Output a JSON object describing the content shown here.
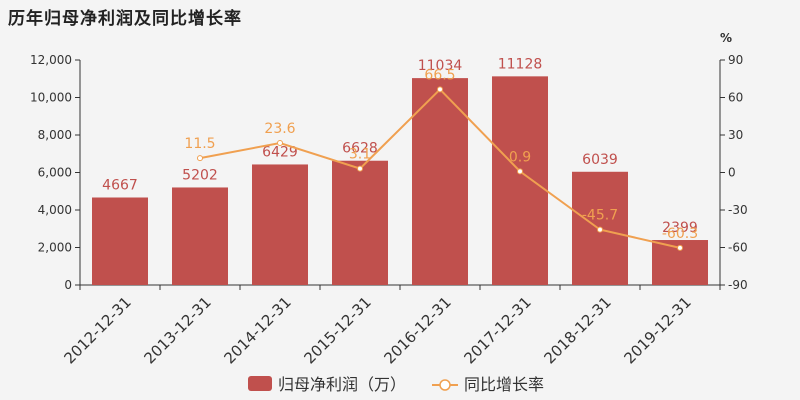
{
  "title": "历年归母净利润及同比增长率",
  "chart_data": {
    "type": "bar",
    "categories": [
      "2012-12-31",
      "2013-12-31",
      "2014-12-31",
      "2015-12-31",
      "2016-12-31",
      "2017-12-31",
      "2018-12-31",
      "2019-12-31"
    ],
    "series": [
      {
        "name": "归母净利润（万）",
        "type": "bar",
        "axis": "left",
        "color": "#c0504d",
        "values": [
          4667,
          5202,
          6429,
          6628,
          11034,
          11128,
          6039,
          2399
        ]
      },
      {
        "name": "同比增长率",
        "type": "line",
        "axis": "right",
        "color": "#f0a050",
        "values": [
          null,
          11.5,
          23.6,
          3.1,
          66.5,
          0.9,
          -45.7,
          -60.3
        ]
      }
    ],
    "y_left": {
      "min": 0,
      "max": 12000,
      "ticks": [
        "0",
        "2,000",
        "4,000",
        "6,000",
        "8,000",
        "10,000",
        "12,000"
      ]
    },
    "y_right": {
      "min": -90,
      "max": 90,
      "label": "%",
      "ticks": [
        "-90",
        "-60",
        "-30",
        "0",
        "30",
        "60",
        "90"
      ]
    },
    "legend_position": "bottom",
    "grid": false
  }
}
